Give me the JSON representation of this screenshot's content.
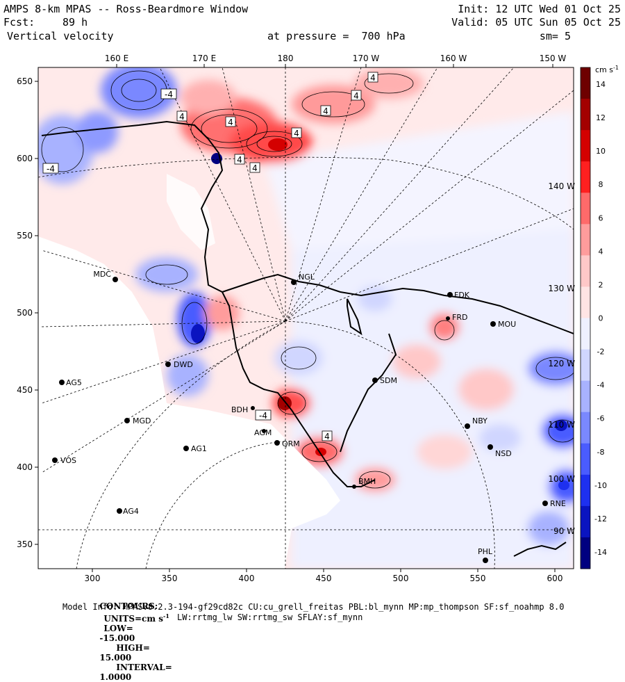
{
  "header": {
    "title": "AMPS 8-km MPAS -- Ross-Beardmore Window",
    "init": "Init: 12 UTC Wed 01 Oct 25",
    "fcst_label": "Fcst:",
    "fcst_value": "89 h",
    "valid": "Valid: 05 UTC Sun 05 Oct 25",
    "field": "Vertical velocity",
    "pressure": "at pressure =  700 hPa",
    "smooth": "sm= 5"
  },
  "map": {
    "top_longitudes": [
      "160 E",
      "170 E",
      "180",
      "170 W",
      "160 W",
      "150 W"
    ],
    "grid_lon_labels": [
      "140 W",
      "130 W",
      "120 W",
      "110 W",
      "100 W",
      "90 W"
    ],
    "contour_labels": [
      "-4",
      "4",
      "4",
      "4",
      "4",
      "4",
      "4",
      "4",
      "-4",
      "-4",
      "4",
      "4"
    ],
    "stations": [
      "MDC",
      "NGL",
      "FDK",
      "FRD",
      "MOU",
      "DWD",
      "AG5",
      "SDM",
      "BDH",
      "MGD",
      "NBY",
      "AGM",
      "QRM",
      "AG1",
      "NSD",
      "VOS",
      "BMH",
      "AG4",
      "RNE",
      "PHL"
    ],
    "x_ticks": [
      300,
      350,
      400,
      450,
      500,
      550,
      600
    ],
    "y_ticks": [
      350,
      400,
      450,
      500,
      550,
      600,
      650
    ]
  },
  "colorbar": {
    "units": "cm s",
    "units_exp": "-1",
    "ticks": [
      14,
      12,
      10,
      8,
      6,
      4,
      2,
      0,
      -2,
      -4,
      -6,
      -8,
      -10,
      -12,
      -14
    ],
    "colors": [
      "#6e0000",
      "#a30000",
      "#d40000",
      "#ff2020",
      "#ff6a6a",
      "#ff9c9c",
      "#ffc8c8",
      "#ffe4e4",
      "#eef0ff",
      "#d0d6ff",
      "#a8b2ff",
      "#7a88ff",
      "#4a5cff",
      "#1e30f0",
      "#0a14c0",
      "#000080"
    ]
  },
  "footer": {
    "contours_label": "CONTOURS:",
    "units_label": "UNITS=cm s",
    "units_exp": "-1",
    "low_label": "LOW=",
    "low_value": "-15.000",
    "high_label": "HIGH=",
    "high_value": "15.000",
    "interval_label": "INTERVAL=",
    "interval_value": "1.0000",
    "model_info": "Model Info: MPASv8.2.3-194-gf29cd82c CU:cu_grell_freitas PBL:bl_mynn MP:mp_thompson SF:sf_noahmp 8.0",
    "radiation_info": "LW:rrtmg_lw SW:rrtmg_sw SFLAY:sf_mynn"
  }
}
